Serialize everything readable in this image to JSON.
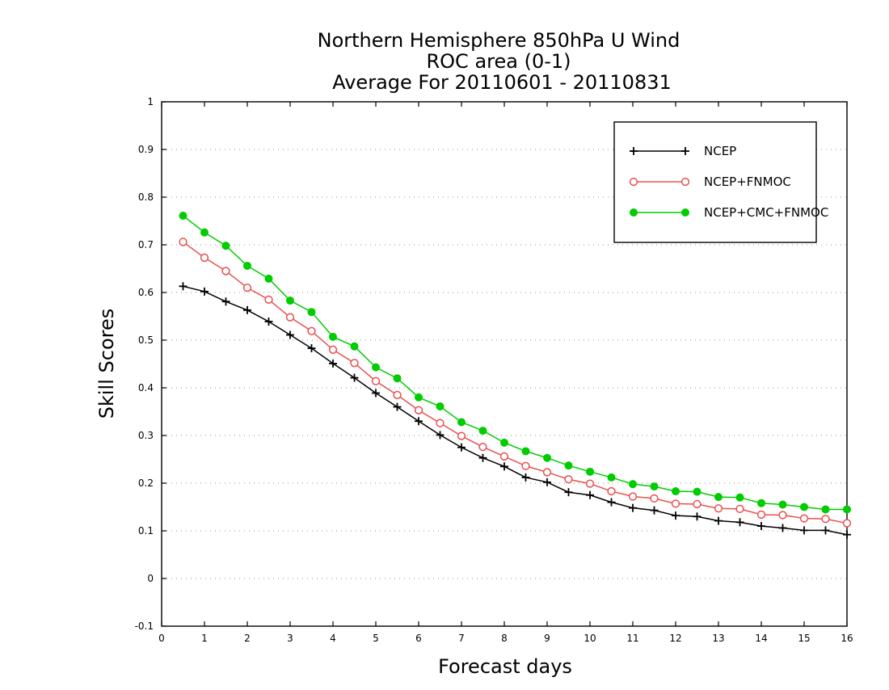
{
  "chart_data": {
    "type": "line",
    "title": [
      "Northern Hemisphere 850hPa U Wind",
      "ROC area (0-1)",
      "Average For 20110601 - 20110831"
    ],
    "xlabel": "Forecast days",
    "ylabel": "Skill Scores",
    "xlim": [
      0,
      16
    ],
    "ylim": [
      -0.1,
      1
    ],
    "x_ticks": [
      0,
      1,
      2,
      3,
      4,
      5,
      6,
      7,
      8,
      9,
      10,
      11,
      12,
      13,
      14,
      15,
      16
    ],
    "x_tick_labels": [
      "0",
      "1",
      "2",
      "3",
      "4",
      "5",
      "6",
      "7",
      "8",
      "9",
      "10",
      "11",
      "12",
      "13",
      "14",
      "15",
      "16"
    ],
    "y_ticks": [
      -0.1,
      0,
      0.1,
      0.2,
      0.3,
      0.4,
      0.5,
      0.6,
      0.7,
      0.8,
      0.9,
      1
    ],
    "y_tick_labels": [
      "-0.1",
      "0",
      "0.1",
      "0.2",
      "0.3",
      "0.4",
      "0.5",
      "0.6",
      "0.7",
      "0.8",
      "0.9",
      "1"
    ],
    "grid": true,
    "legend_position": "top-right",
    "x": [
      0.5,
      1,
      1.5,
      2,
      2.5,
      3,
      3.5,
      4,
      4.5,
      5,
      5.5,
      6,
      6.5,
      7,
      7.5,
      8,
      8.5,
      9,
      9.5,
      10,
      10.5,
      11,
      11.5,
      12,
      12.5,
      13,
      13.5,
      14,
      14.5,
      15,
      15.5,
      16
    ],
    "series": [
      {
        "name": "NCEP",
        "color": "#000000",
        "marker": "plus",
        "values": [
          0.613,
          0.602,
          0.581,
          0.563,
          0.539,
          0.511,
          0.483,
          0.451,
          0.421,
          0.389,
          0.36,
          0.33,
          0.301,
          0.275,
          0.253,
          0.235,
          0.212,
          0.202,
          0.181,
          0.175,
          0.16,
          0.148,
          0.143,
          0.132,
          0.13,
          0.121,
          0.118,
          0.11,
          0.106,
          0.101,
          0.101,
          0.092
        ]
      },
      {
        "name": "NCEP+FNMOC",
        "color": "#e8504f",
        "marker": "open-circle",
        "values": [
          0.706,
          0.673,
          0.645,
          0.61,
          0.585,
          0.548,
          0.519,
          0.48,
          0.452,
          0.414,
          0.385,
          0.353,
          0.326,
          0.299,
          0.276,
          0.256,
          0.236,
          0.223,
          0.208,
          0.199,
          0.183,
          0.172,
          0.168,
          0.157,
          0.156,
          0.147,
          0.146,
          0.134,
          0.133,
          0.126,
          0.125,
          0.116
        ]
      },
      {
        "name": "NCEP+CMC+FNMOC",
        "color": "#00cc00",
        "marker": "filled-circle",
        "values": [
          0.761,
          0.726,
          0.698,
          0.656,
          0.629,
          0.583,
          0.559,
          0.507,
          0.487,
          0.443,
          0.42,
          0.38,
          0.361,
          0.328,
          0.31,
          0.285,
          0.267,
          0.253,
          0.237,
          0.224,
          0.212,
          0.198,
          0.193,
          0.183,
          0.182,
          0.171,
          0.17,
          0.158,
          0.155,
          0.15,
          0.145,
          0.145
        ]
      }
    ]
  }
}
